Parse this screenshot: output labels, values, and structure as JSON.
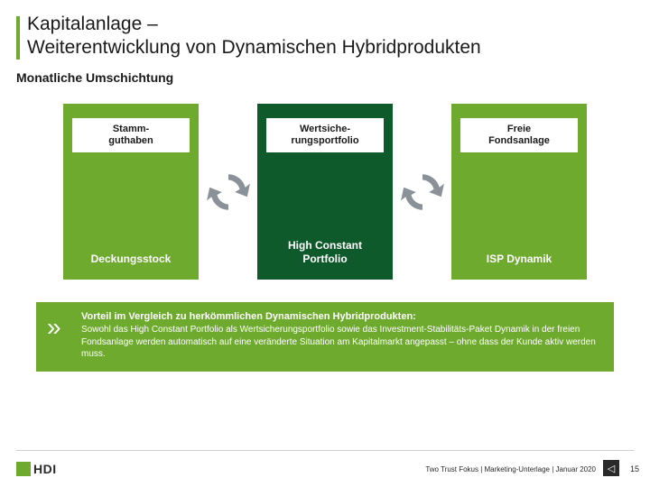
{
  "title_line1": "Kapitalanlage –",
  "title_line2": "Weiterentwicklung von Dynamischen Hybridprodukten",
  "subtitle": "Monatliche Umschichtung",
  "colors": {
    "light_green": "#6eaa2e",
    "dark_green": "#0f5a2b",
    "arrow_gray": "#8a9199",
    "white": "#ffffff",
    "text": "#1a1a1a"
  },
  "columns": [
    {
      "bg": "light",
      "top": "Stamm-\nguthaben",
      "bottom": "Deckungsstock",
      "bottom_style": "text"
    },
    {
      "bg": "dark",
      "top": "Wertsiche-\nrungsportfolio",
      "bottom": "High Constant\nPortfolio",
      "bottom_style": "text"
    },
    {
      "bg": "light",
      "top": "Freie\nFondsanlage",
      "bottom": "ISP Dynamik",
      "bottom_style": "text"
    }
  ],
  "advantage": {
    "marker": "»",
    "title": "Vorteil im Vergleich zu herkömmlichen Dynamischen Hybridprodukten:",
    "body": "Sowohl das High Constant Portfolio als Wertsicherungsportfolio sowie das Investment-Stabilitäts-Paket Dynamik in der freien Fondsanlage werden automatisch auf eine veränderte Situation am Kapitalmarkt angepasst – ohne dass der Kunde aktiv werden muss."
  },
  "footer": {
    "logo_text": "HDI",
    "meta": "Two Trust Fokus | Marketing-Unterlage | Januar 2020",
    "nav_glyph": "◁",
    "page": "15"
  }
}
